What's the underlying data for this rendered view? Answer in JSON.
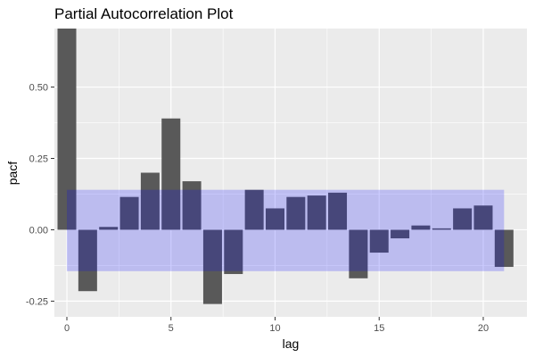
{
  "chart_data": {
    "type": "bar",
    "title": "Partial Autocorrelation Plot",
    "xlabel": "lag",
    "ylabel": "pacf",
    "x_ticks": [
      0,
      5,
      10,
      15,
      20
    ],
    "y_ticks": [
      -0.25,
      0.0,
      0.25,
      0.5
    ],
    "y_tick_labels": [
      "-0.25",
      "0.00",
      "0.25",
      "0.50"
    ],
    "xlim": [
      -0.6,
      22.1
    ],
    "ylim": [
      -0.305,
      0.705
    ],
    "series": [
      {
        "x": [
          0,
          1,
          2,
          3,
          4,
          5,
          6,
          7,
          8,
          9,
          10,
          11,
          12,
          13,
          14,
          15,
          16,
          17,
          18,
          19,
          20,
          21
        ],
        "values": [
          0.705,
          -0.215,
          0.01,
          0.115,
          0.2,
          0.39,
          0.17,
          -0.26,
          -0.155,
          0.14,
          0.075,
          0.115,
          0.12,
          0.13,
          -0.17,
          -0.08,
          -0.03,
          0.015,
          0.005,
          0.075,
          0.085,
          -0.13
        ],
        "color": "#595959"
      }
    ],
    "confidence_band": {
      "lower": -0.145,
      "upper": 0.14,
      "x_from": 0,
      "x_to": 21,
      "color": "#0000ff",
      "opacity": 0.2
    },
    "panel_background": "#ebebeb",
    "grid": true
  }
}
